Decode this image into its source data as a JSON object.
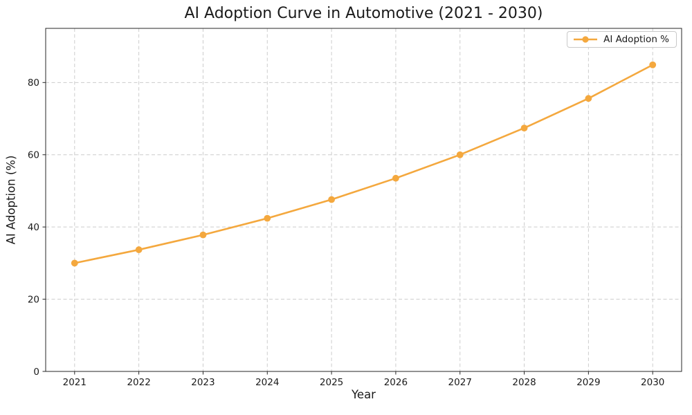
{
  "chart_data": {
    "type": "line",
    "title": "AI Adoption Curve in Automotive (2021 - 2030)",
    "xlabel": "Year",
    "ylabel": "AI Adoption (%)",
    "categories": [
      "2021",
      "2022",
      "2023",
      "2024",
      "2025",
      "2026",
      "2027",
      "2028",
      "2029",
      "2030"
    ],
    "series": [
      {
        "name": "AI Adoption %",
        "values": [
          30.0,
          33.7,
          37.8,
          42.4,
          47.6,
          53.5,
          60.0,
          67.4,
          75.6,
          84.9
        ],
        "color": "#F4A83E",
        "marker": "o",
        "line_width": 2.6
      }
    ],
    "ylim": [
      0,
      95
    ],
    "yticks": [
      0,
      20,
      40,
      60,
      80
    ],
    "grid": true,
    "grid_style": "dashed",
    "legend_position": "upper right"
  },
  "legend": {
    "label": "AI Adoption %"
  },
  "colors": {
    "line": "#F4A83E",
    "grid": "#cccccc",
    "axis": "#262626",
    "text": "#1a1a1a",
    "background": "#ffffff"
  }
}
